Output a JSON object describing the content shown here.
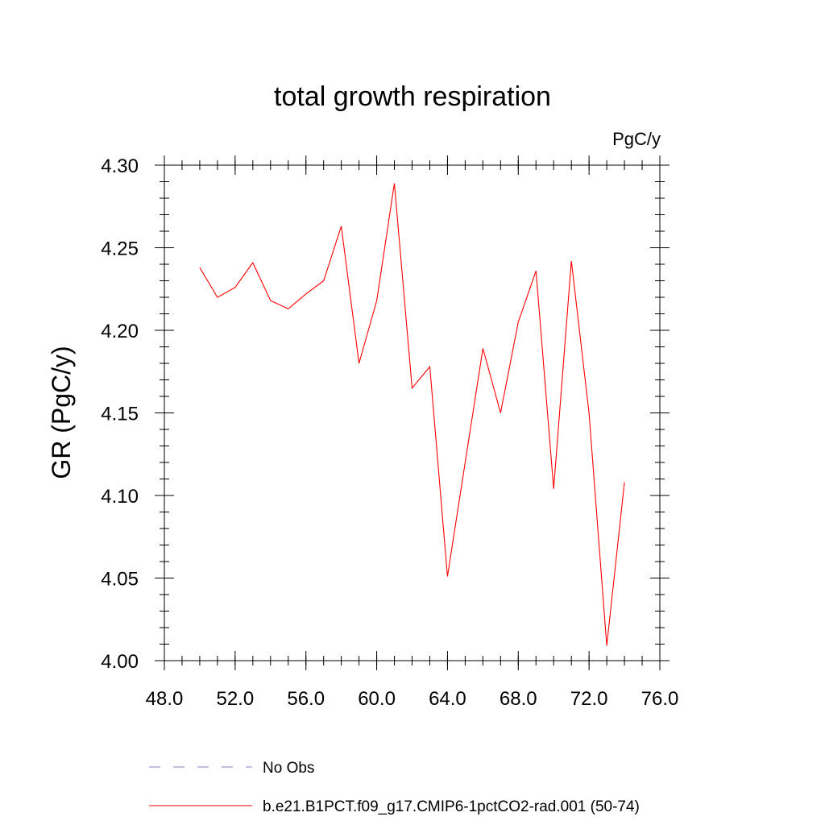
{
  "chart_data": {
    "type": "line",
    "title": "total growth respiration",
    "units_label": "PgC/y",
    "xlabel": "",
    "ylabel": "GR  (PgC/y)",
    "xlim": [
      48,
      76
    ],
    "ylim": [
      4.0,
      4.3
    ],
    "x_ticks": [
      48,
      52,
      56,
      60,
      64,
      68,
      72,
      76
    ],
    "x_tick_labels": [
      "48.0",
      "52.0",
      "56.0",
      "60.0",
      "64.0",
      "68.0",
      "72.0",
      "76.0"
    ],
    "y_ticks": [
      4.0,
      4.05,
      4.1,
      4.15,
      4.2,
      4.25,
      4.3
    ],
    "y_tick_labels": [
      "4.00",
      "4.05",
      "4.10",
      "4.15",
      "4.20",
      "4.25",
      "4.30"
    ],
    "x_minor_step": 1,
    "y_minor_step": 0.01,
    "grid": false,
    "legend_position": "bottom",
    "series": [
      {
        "name": "b.e21.B1PCT.f09_g17.CMIP6-1pctCO2-rad.001 (50-74)",
        "color": "#ff0000",
        "style": "solid",
        "x": [
          50,
          51,
          52,
          53,
          54,
          55,
          56,
          57,
          58,
          59,
          60,
          61,
          62,
          63,
          64,
          65,
          66,
          67,
          68,
          69,
          70,
          71,
          72,
          73,
          74
        ],
        "y": [
          4.238,
          4.22,
          4.226,
          4.241,
          4.218,
          4.213,
          4.222,
          4.23,
          4.263,
          4.18,
          4.218,
          4.289,
          4.165,
          4.178,
          4.051,
          4.12,
          4.189,
          4.15,
          4.205,
          4.236,
          4.104,
          4.242,
          4.15,
          4.009,
          4.108
        ]
      }
    ],
    "legend": [
      {
        "label": "No Obs",
        "color": "#8080c0",
        "style": "dashed"
      },
      {
        "label": "b.e21.B1PCT.f09_g17.CMIP6-1pctCO2-rad.001 (50-74)",
        "color": "#ff0000",
        "style": "solid"
      }
    ]
  }
}
